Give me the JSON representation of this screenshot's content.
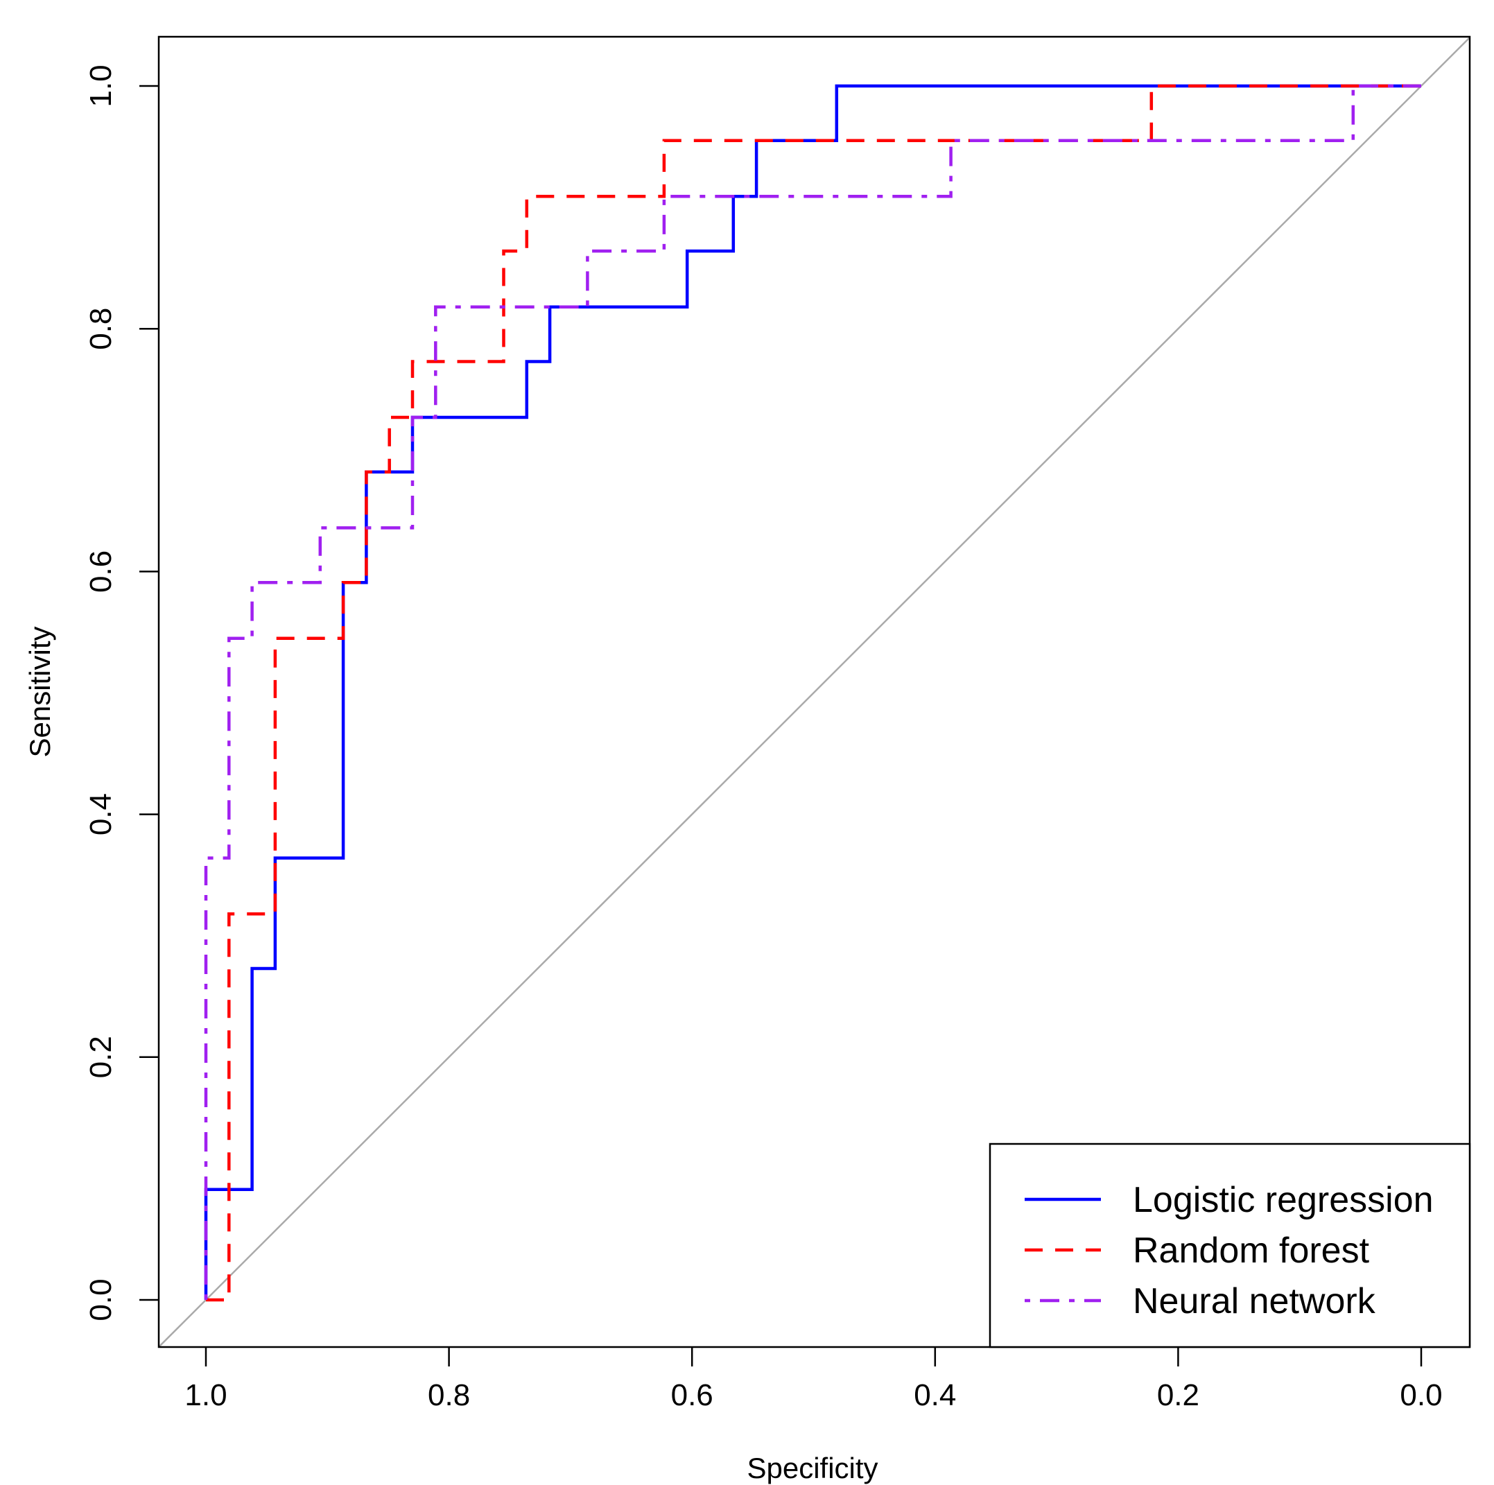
{
  "chart_data": {
    "type": "line",
    "title": "",
    "xlabel": "Specificity",
    "ylabel": "Sensitivity",
    "x_reversed": true,
    "xlim": [
      1.0,
      0.0
    ],
    "ylim": [
      0.0,
      1.0
    ],
    "x_ticks": [
      "1.0",
      "0.8",
      "0.6",
      "0.4",
      "0.2",
      "0.0"
    ],
    "y_ticks": [
      "0.0",
      "0.2",
      "0.4",
      "0.6",
      "0.8",
      "1.0"
    ],
    "grid": false,
    "legend_position": "bottom-right",
    "reference_line": {
      "from": [
        1.0,
        0.0
      ],
      "to": [
        0.0,
        1.0
      ],
      "color": "#aaaaaa"
    },
    "series": [
      {
        "name": "Logistic regression",
        "color": "#0000ff",
        "line_style": "solid",
        "points": [
          [
            1.0,
            0.0
          ],
          [
            1.0,
            0.091
          ],
          [
            0.962,
            0.091
          ],
          [
            0.962,
            0.273
          ],
          [
            0.943,
            0.273
          ],
          [
            0.943,
            0.364
          ],
          [
            0.887,
            0.364
          ],
          [
            0.887,
            0.591
          ],
          [
            0.868,
            0.591
          ],
          [
            0.868,
            0.682
          ],
          [
            0.83,
            0.682
          ],
          [
            0.83,
            0.727
          ],
          [
            0.736,
            0.727
          ],
          [
            0.736,
            0.773
          ],
          [
            0.717,
            0.773
          ],
          [
            0.717,
            0.818
          ],
          [
            0.604,
            0.818
          ],
          [
            0.604,
            0.864
          ],
          [
            0.566,
            0.864
          ],
          [
            0.566,
            0.909
          ],
          [
            0.547,
            0.909
          ],
          [
            0.547,
            0.955
          ],
          [
            0.481,
            0.955
          ],
          [
            0.481,
            1.0
          ],
          [
            0.0,
            1.0
          ]
        ]
      },
      {
        "name": "Random forest",
        "color": "#ff0000",
        "line_style": "dashed",
        "points": [
          [
            1.0,
            0.0
          ],
          [
            0.981,
            0.0
          ],
          [
            0.981,
            0.318
          ],
          [
            0.943,
            0.318
          ],
          [
            0.943,
            0.545
          ],
          [
            0.887,
            0.545
          ],
          [
            0.887,
            0.591
          ],
          [
            0.868,
            0.591
          ],
          [
            0.868,
            0.682
          ],
          [
            0.849,
            0.682
          ],
          [
            0.849,
            0.727
          ],
          [
            0.83,
            0.727
          ],
          [
            0.83,
            0.773
          ],
          [
            0.755,
            0.773
          ],
          [
            0.755,
            0.864
          ],
          [
            0.736,
            0.864
          ],
          [
            0.736,
            0.909
          ],
          [
            0.623,
            0.909
          ],
          [
            0.623,
            0.955
          ],
          [
            0.222,
            0.955
          ],
          [
            0.222,
            1.0
          ],
          [
            0.0,
            1.0
          ]
        ]
      },
      {
        "name": "Neural network",
        "color": "#a020f0",
        "line_style": "dotdash",
        "points": [
          [
            1.0,
            0.0
          ],
          [
            1.0,
            0.364
          ],
          [
            0.981,
            0.364
          ],
          [
            0.981,
            0.545
          ],
          [
            0.962,
            0.545
          ],
          [
            0.962,
            0.591
          ],
          [
            0.906,
            0.591
          ],
          [
            0.906,
            0.636
          ],
          [
            0.83,
            0.636
          ],
          [
            0.83,
            0.727
          ],
          [
            0.811,
            0.727
          ],
          [
            0.811,
            0.818
          ],
          [
            0.686,
            0.818
          ],
          [
            0.686,
            0.864
          ],
          [
            0.623,
            0.864
          ],
          [
            0.623,
            0.909
          ],
          [
            0.387,
            0.909
          ],
          [
            0.387,
            0.955
          ],
          [
            0.056,
            0.955
          ],
          [
            0.056,
            1.0
          ],
          [
            0.0,
            1.0
          ]
        ]
      }
    ]
  }
}
